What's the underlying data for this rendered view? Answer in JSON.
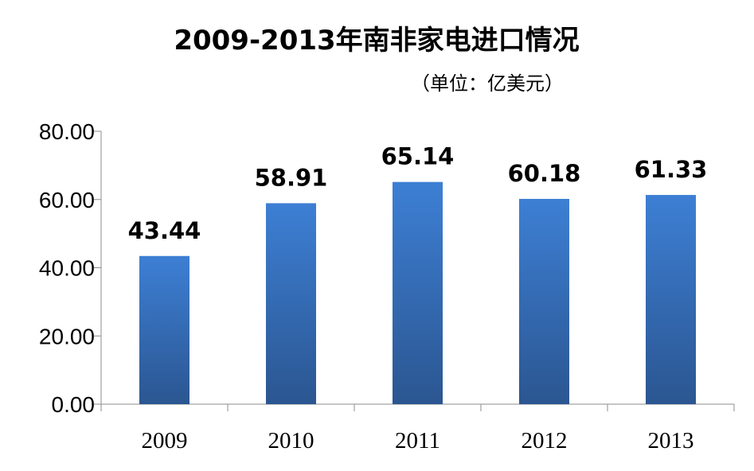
{
  "chart_data": {
    "type": "bar",
    "title": "2009-2013年南非家电进口情况",
    "subtitle": "（单位：亿美元）",
    "xlabel": "",
    "ylabel": "",
    "categories": [
      "2009",
      "2010",
      "2011",
      "2012",
      "2013"
    ],
    "values": [
      43.44,
      58.91,
      65.14,
      60.18,
      61.33
    ],
    "value_labels": [
      "43.44",
      "58.91",
      "65.14",
      "60.18",
      "61.33"
    ],
    "ylim": [
      0,
      80
    ],
    "yticks": [
      0,
      20,
      40,
      60,
      80
    ],
    "ytick_labels": [
      "0.00",
      "20.00",
      "40.00",
      "60.00",
      "80.00"
    ],
    "grid": false,
    "legend": "none",
    "bar_color_top": "#3d7fd4",
    "bar_color_bottom": "#2b5691"
  }
}
